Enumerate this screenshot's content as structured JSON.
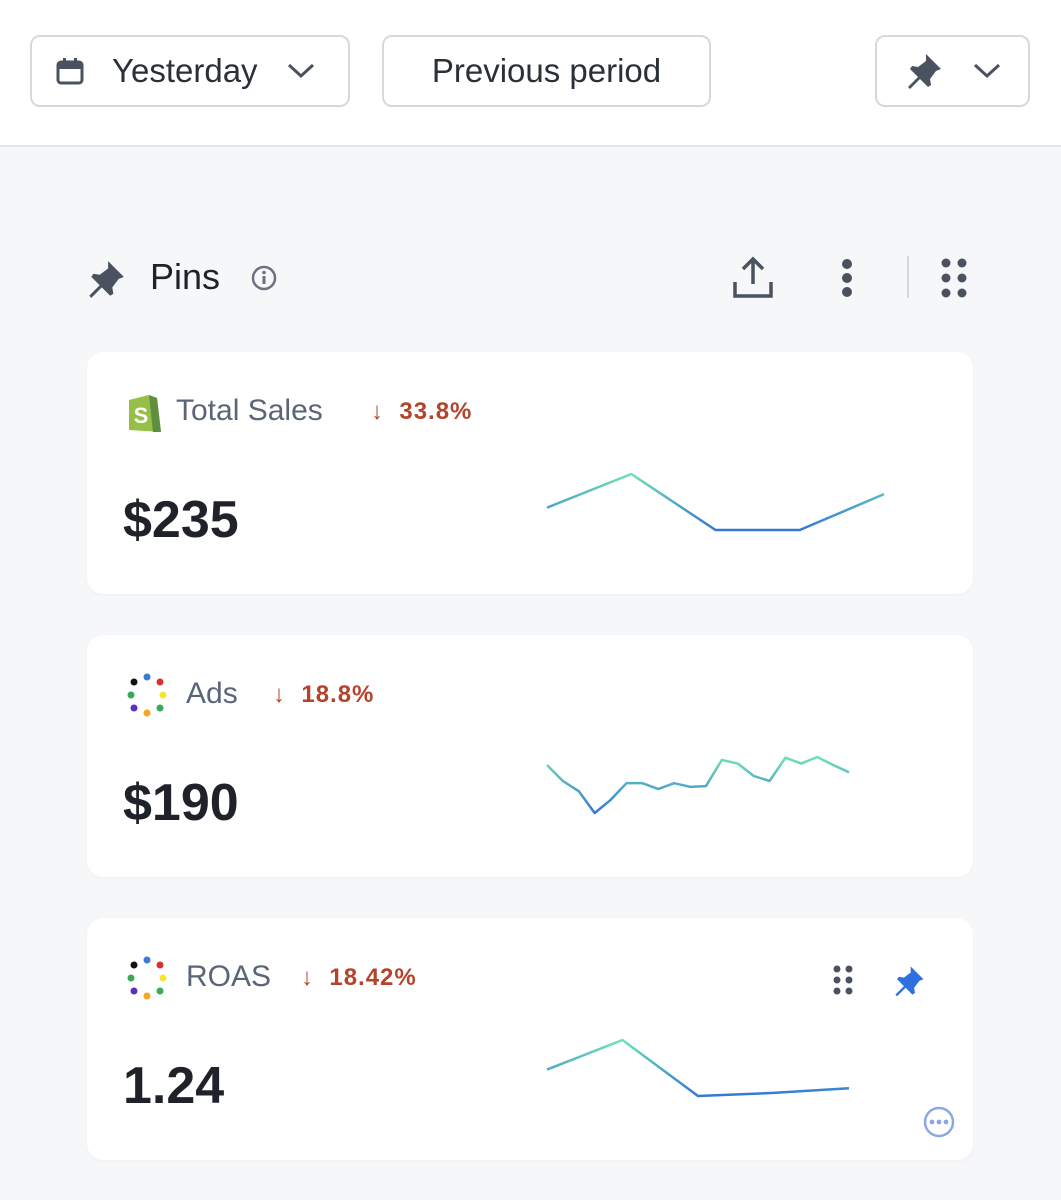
{
  "header": {
    "date_range": "Yesterday",
    "compare": "Previous period"
  },
  "section": {
    "title": "Pins"
  },
  "cards": [
    {
      "label": "Total Sales",
      "change": "33.8%",
      "value": "$235",
      "sparkline": [
        48,
        78,
        28,
        28,
        60
      ]
    },
    {
      "label": "Ads",
      "change": "18.8%",
      "value": "$190",
      "sparkline": [
        79,
        57,
        43,
        13,
        31,
        54,
        54,
        46,
        54,
        49,
        50,
        86,
        81,
        64,
        57,
        89,
        81,
        90,
        79,
        69
      ]
    },
    {
      "label": "ROAS",
      "change": "18.42%",
      "value": "1.24",
      "sparkline": [
        47,
        85,
        13,
        17,
        23
      ]
    }
  ]
}
